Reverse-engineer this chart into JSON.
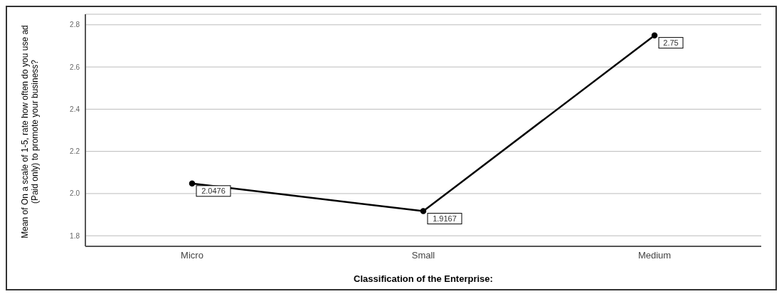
{
  "chart_data": {
    "type": "line",
    "xlabel": "Classification of the Enterprise:",
    "ylabel": "Mean of On a scale of 1-5, rate how often do you use ad (Paid only) to promote your business?",
    "categories": [
      "Micro",
      "Small",
      "Medium"
    ],
    "series": [
      {
        "color": "#000000",
        "values": [
          2.0476,
          1.9167,
          2.75
        ]
      }
    ],
    "ylim": [
      1.75,
      2.85
    ],
    "yticks": [
      {
        "value": 1.8,
        "label": "1.8"
      },
      {
        "value": 2.0,
        "label": "2.0"
      },
      {
        "value": 2.2,
        "label": "2.2"
      },
      {
        "value": 2.4,
        "label": "2.4"
      },
      {
        "value": 2.6,
        "label": "2.6"
      },
      {
        "value": 2.8,
        "label": "2.8"
      }
    ],
    "grid": "y",
    "data_labels": true,
    "marker": "circle",
    "line_style": "solid"
  }
}
